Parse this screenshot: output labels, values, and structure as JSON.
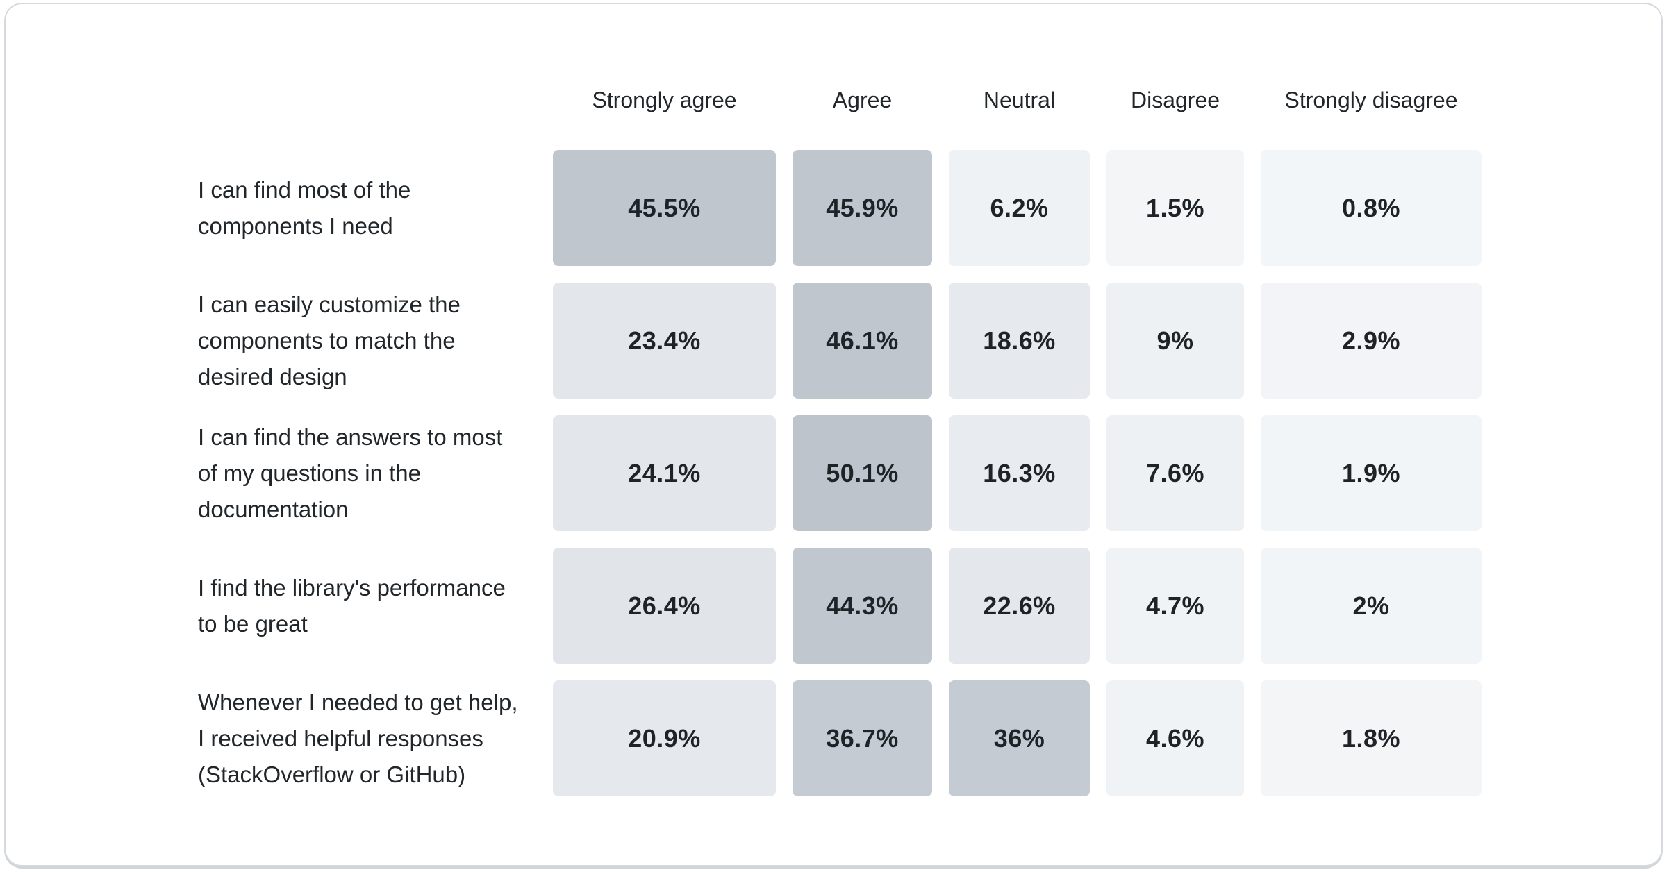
{
  "card": {
    "background": "#ffffff",
    "border_color": "#d6dadf",
    "shadow_color": "#cfd5db"
  },
  "chart_data": {
    "type": "heatmap",
    "columns": [
      "Strongly agree",
      "Agree",
      "Neutral",
      "Disagree",
      "Strongly disagree"
    ],
    "rows": [
      "I can find most of the components I need",
      "I can easily customize the components to match the desired design",
      "I can find the answers to most of my questions in the documentation",
      "I find the library's performance to be great",
      "Whenever I needed to get help, I received helpful responses (StackOverflow or GitHub)"
    ],
    "row_label_lines": [
      "I can find most of the\ncomponents I need",
      "I can easily customize the\ncomponents to match the\ndesired design",
      "I can find the answers to most\nof my questions in the\ndocumentation",
      "I find the library's performance\nto be great",
      "Whenever I needed to get help,\nI received helpful responses\n(StackOverflow or GitHub)"
    ],
    "values": [
      [
        45.5,
        45.9,
        6.2,
        1.5,
        0.8
      ],
      [
        23.4,
        46.1,
        18.6,
        9,
        2.9
      ],
      [
        24.1,
        50.1,
        16.3,
        7.6,
        1.9
      ],
      [
        26.4,
        44.3,
        22.6,
        4.7,
        2
      ],
      [
        20.9,
        36.7,
        36,
        4.6,
        1.8
      ]
    ],
    "cell_labels": [
      [
        "45.5%",
        "45.9%",
        "6.2%",
        "1.5%",
        "0.8%"
      ],
      [
        "23.4%",
        "46.1%",
        "18.6%",
        "9%",
        "2.9%"
      ],
      [
        "24.1%",
        "50.1%",
        "16.3%",
        "7.6%",
        "1.9%"
      ],
      [
        "26.4%",
        "44.3%",
        "22.6%",
        "4.7%",
        "2%"
      ],
      [
        "20.9%",
        "36.7%",
        "36%",
        "4.6%",
        "1.8%"
      ]
    ],
    "value_unit": "percent",
    "legend": "none",
    "grid": "off",
    "colormap": {
      "stops": [
        [
          0,
          "#f4f6f8"
        ],
        [
          10,
          "#ecf0f3"
        ],
        [
          27,
          "#e1e5ea"
        ],
        [
          36,
          "#c4cbd2"
        ],
        [
          50.1,
          "#bdc4cc"
        ]
      ]
    },
    "text_colors": {
      "header": "#21262a",
      "row_label": "#21262a",
      "value": "#1e2327"
    }
  }
}
